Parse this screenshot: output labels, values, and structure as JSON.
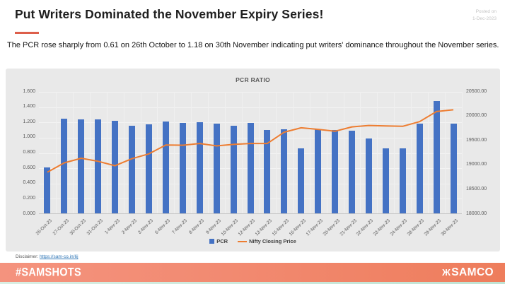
{
  "header": {
    "title": "Put Writers Dominated the November Expiry Series!",
    "posted_on_line1": "Posted on",
    "posted_on_line2": "1-Dec-2023",
    "subtitle": "The PCR rose sharply from 0.61 on 26th October to 1.18 on 30th November indicating put writers' dominance throughout the November series."
  },
  "chart_data": {
    "type": "bar",
    "title": "PCR RATIO",
    "categories": [
      "26-Oct-23",
      "27-Oct-23",
      "30-Oct-23",
      "31-Oct-23",
      "1-Nov-23",
      "2-Nov-23",
      "3-Nov-23",
      "6-Nov-23",
      "7-Nov-23",
      "8-Nov-23",
      "9-Nov-23",
      "10-Nov-23",
      "12-Nov-23",
      "13-Nov-23",
      "15-Nov-23",
      "16-Nov-23",
      "17-Nov-23",
      "20-Nov-23",
      "21-Nov-23",
      "22-Nov-23",
      "23-Nov-23",
      "24-Nov-23",
      "28-Nov-23",
      "29-Nov-23",
      "30-Nov-23"
    ],
    "series": [
      {
        "name": "PCR",
        "type": "bar",
        "axis": "left",
        "color": "#4472c4",
        "values": [
          0.61,
          1.25,
          1.24,
          1.24,
          1.22,
          1.16,
          1.17,
          1.21,
          1.19,
          1.2,
          1.18,
          1.16,
          1.19,
          1.1,
          1.11,
          0.86,
          1.11,
          1.1,
          1.09,
          0.99,
          0.86,
          0.86,
          1.18,
          1.48,
          1.18
        ]
      },
      {
        "name": "Nifty Closing Price",
        "type": "line",
        "axis": "right",
        "color": "#ed7d31",
        "values": [
          18857,
          19047,
          19141,
          19080,
          18989,
          19133,
          19231,
          19412,
          19407,
          19444,
          19395,
          19425,
          19444,
          19444,
          19675,
          19765,
          19732,
          19694,
          19783,
          19812,
          19802,
          19795,
          19890,
          20097,
          20133
        ]
      }
    ],
    "left_axis": {
      "min": 0,
      "max": 1.6,
      "step": 0.2,
      "ticks": [
        "0.000",
        "0.200",
        "0.400",
        "0.600",
        "0.800",
        "1.000",
        "1.200",
        "1.400",
        "1.600"
      ]
    },
    "right_axis": {
      "min": 18000,
      "max": 20500,
      "step": 500,
      "ticks": [
        "18000.00",
        "18500.00",
        "19000.00",
        "19500.00",
        "20000.00",
        "20500.00"
      ]
    },
    "grid": true,
    "legend_position": "bottom"
  },
  "footer": {
    "disclaimer_label": "Disclaimer:",
    "disclaimer_link": "https://sam-co.in/6j",
    "hashtag": "#SAMSHOTS",
    "brand": "SAMCO",
    "brand_mark": "Ж"
  }
}
